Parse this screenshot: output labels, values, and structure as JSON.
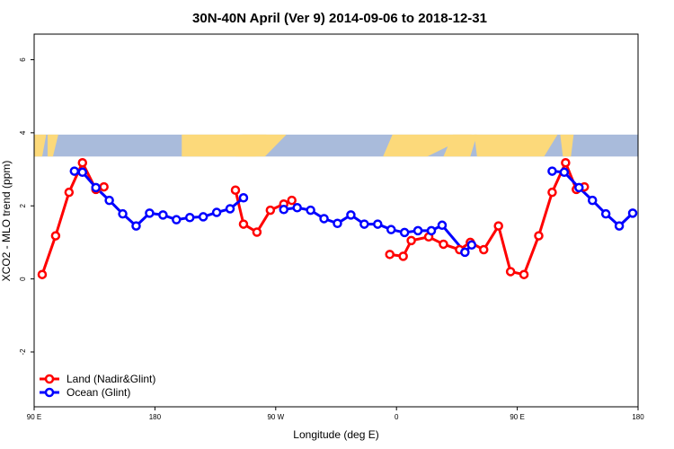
{
  "chart_data": {
    "type": "line",
    "title": "30N-40N April (Ver 9)   2014-09-06 to 2018-12-31",
    "xlabel": "Longitude (deg E)",
    "ylabel": "XCO2 - MLO trend (ppm)",
    "xlim": [
      90,
      540
    ],
    "ylim": [
      -3.5,
      6.7
    ],
    "x_ticks": [
      {
        "value": 90,
        "label": "90 E"
      },
      {
        "value": 180,
        "label": "180"
      },
      {
        "value": 270,
        "label": "90 W"
      },
      {
        "value": 360,
        "label": "0"
      },
      {
        "value": 450,
        "label": "90 E"
      },
      {
        "value": 540,
        "label": "180"
      }
    ],
    "y_ticks": [
      {
        "value": -2,
        "label": "-2"
      },
      {
        "value": 0,
        "label": "0"
      },
      {
        "value": 2,
        "label": "2"
      },
      {
        "value": 4,
        "label": "4"
      },
      {
        "value": 6,
        "label": "6"
      }
    ],
    "map_band": {
      "ymin": 3.35,
      "ymax": 3.95,
      "ocean_color": "#a9bbdb",
      "land_color": "#fcd97a"
    },
    "legend": {
      "position": "bottom-left"
    },
    "series": [
      {
        "name": "Land (Nadir&Glint)",
        "color": "#ff0000",
        "segments": [
          [
            [
              96,
              0.12
            ],
            [
              106,
              1.18
            ],
            [
              116,
              2.37
            ],
            [
              126,
              3.18
            ],
            [
              136,
              2.45
            ],
            [
              142,
              2.52
            ]
          ],
          [
            [
              240,
              2.43
            ],
            [
              246,
              1.5
            ],
            [
              256,
              1.28
            ],
            [
              266,
              1.88
            ],
            [
              276,
              2.05
            ],
            [
              282,
              2.15
            ]
          ],
          [
            [
              355,
              0.67
            ],
            [
              365,
              0.62
            ],
            [
              371,
              1.05
            ],
            [
              384,
              1.15
            ],
            [
              395,
              0.95
            ],
            [
              407,
              0.8
            ],
            [
              415,
              1.0
            ],
            [
              425,
              0.8
            ],
            [
              436,
              1.45
            ],
            [
              445,
              0.2
            ],
            [
              455,
              0.12
            ],
            [
              466,
              1.18
            ],
            [
              476,
              2.37
            ],
            [
              486,
              3.18
            ],
            [
              494,
              2.45
            ],
            [
              500,
              2.52
            ]
          ]
        ]
      },
      {
        "name": "Ocean (Glint)",
        "color": "#0000ff",
        "segments": [
          [
            [
              120,
              2.95
            ],
            [
              126,
              2.92
            ],
            [
              136,
              2.5
            ],
            [
              146,
              2.15
            ],
            [
              156,
              1.78
            ],
            [
              166,
              1.45
            ],
            [
              176,
              1.8
            ],
            [
              186,
              1.75
            ],
            [
              196,
              1.62
            ],
            [
              206,
              1.68
            ],
            [
              216,
              1.7
            ],
            [
              226,
              1.82
            ],
            [
              236,
              1.92
            ],
            [
              246,
              2.22
            ]
          ],
          [
            [
              276,
              1.9
            ],
            [
              286,
              1.95
            ],
            [
              296,
              1.88
            ],
            [
              306,
              1.65
            ],
            [
              316,
              1.52
            ],
            [
              326,
              1.75
            ],
            [
              336,
              1.5
            ],
            [
              346,
              1.5
            ],
            [
              356,
              1.35
            ],
            [
              366,
              1.27
            ],
            [
              376,
              1.32
            ],
            [
              386,
              1.32
            ],
            [
              394,
              1.47
            ],
            [
              411,
              0.73
            ],
            [
              416,
              0.93
            ]
          ],
          [
            [
              476,
              2.95
            ],
            [
              485,
              2.92
            ],
            [
              496,
              2.5
            ],
            [
              506,
              2.15
            ],
            [
              516,
              1.78
            ],
            [
              526,
              1.45
            ],
            [
              536,
              1.8
            ]
          ]
        ]
      }
    ]
  }
}
